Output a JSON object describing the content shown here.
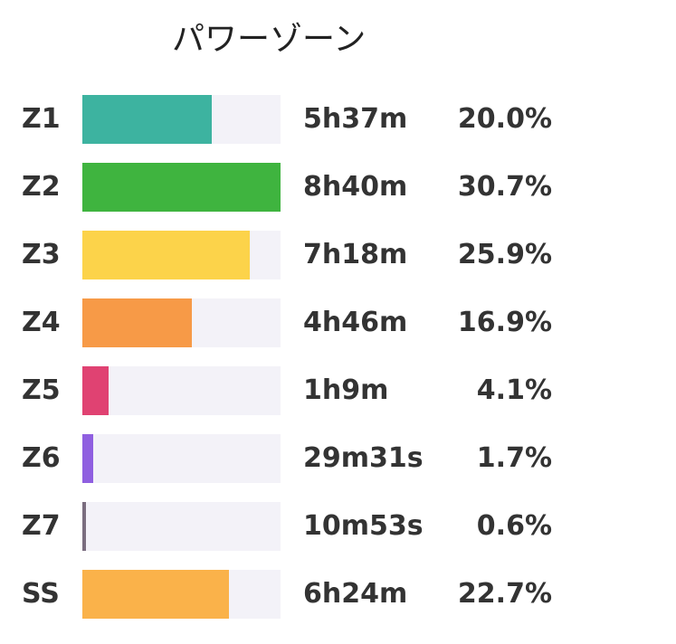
{
  "chart_data": {
    "type": "bar",
    "title": "パワーゾーン",
    "categories": [
      "Z1",
      "Z2",
      "Z3",
      "Z4",
      "Z5",
      "Z6",
      "Z7",
      "SS"
    ],
    "times": [
      "5h37m",
      "8h40m",
      "7h18m",
      "4h46m",
      "1h9m",
      "29m31s",
      "10m53s",
      "6h24m"
    ],
    "percent_labels": [
      "20.0%",
      "30.7%",
      "25.9%",
      "16.9%",
      "4.1%",
      "1.7%",
      "0.6%",
      "22.7%"
    ],
    "values": [
      20.0,
      30.7,
      25.9,
      16.9,
      4.1,
      1.7,
      0.6,
      22.7
    ],
    "colors": [
      "#3db3a0",
      "#3fb43f",
      "#fcd34a",
      "#f79a47",
      "#e04272",
      "#8f5fe0",
      "#7a6d7f",
      "#fab24a"
    ],
    "xlim": [
      0,
      30.7
    ]
  }
}
